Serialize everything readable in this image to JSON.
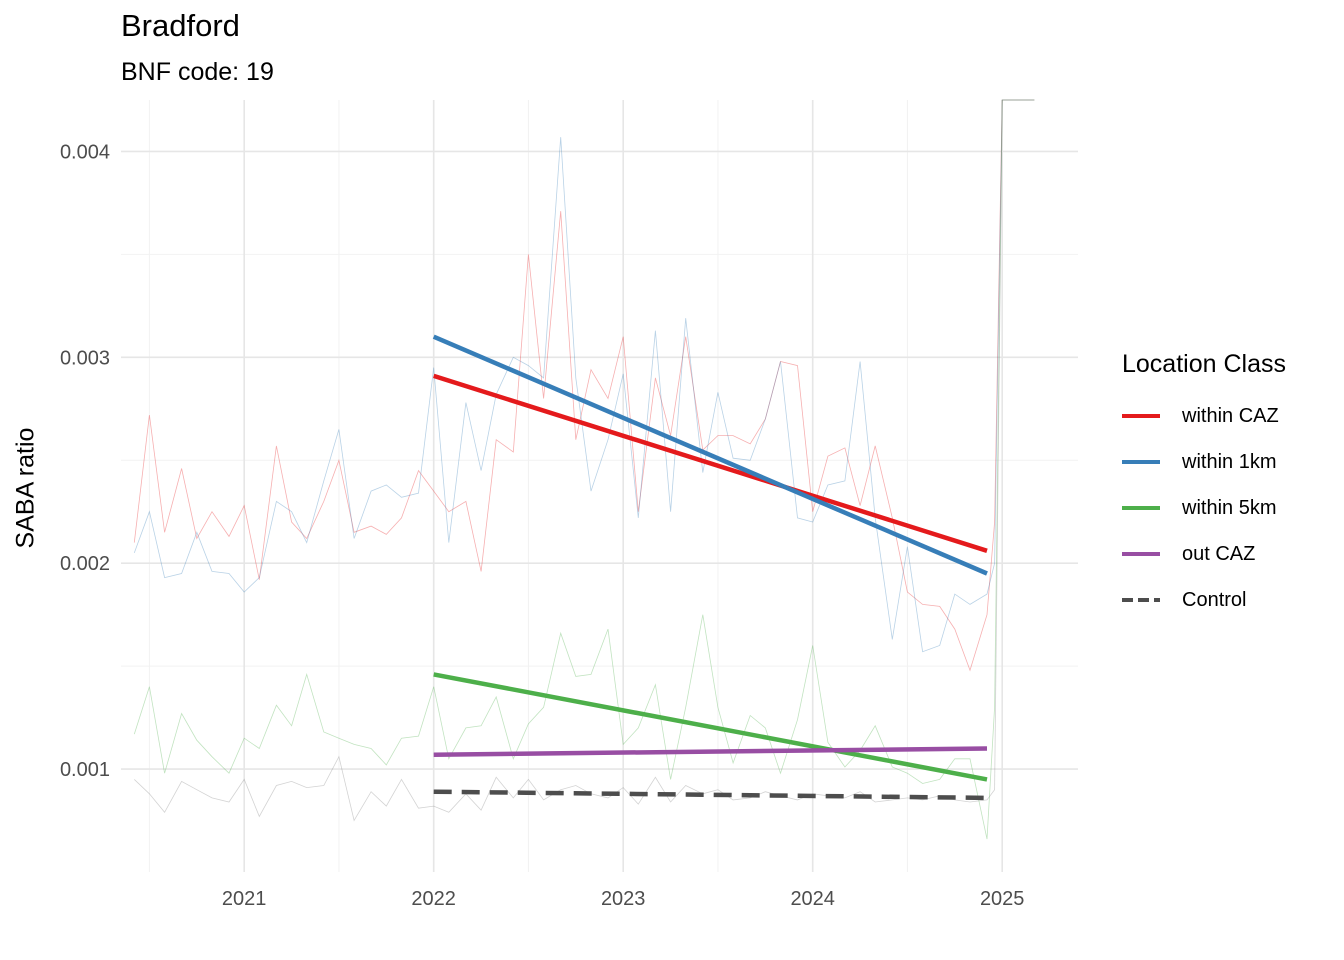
{
  "chart_data": {
    "type": "line",
    "title": "Bradford",
    "subtitle": "BNF code: 19",
    "xlabel": "",
    "ylabel": "SABA ratio",
    "xlim": [
      2020.35,
      2025.4
    ],
    "ylim": [
      0.0005,
      0.00425
    ],
    "x_ticks": [
      2021,
      2022,
      2023,
      2024,
      2025
    ],
    "x_tick_labels": [
      "2021",
      "2022",
      "2023",
      "2024",
      "2025"
    ],
    "y_ticks": [
      0.001,
      0.002,
      0.003,
      0.004
    ],
    "y_tick_labels": [
      "0.001",
      "0.002",
      "0.003",
      "0.004"
    ],
    "grid": true,
    "legend": {
      "title": "Location Class",
      "position": "right",
      "entries": [
        {
          "label": "within CAZ",
          "color": "#E41A1C",
          "dash": "solid"
        },
        {
          "label": "within 1km",
          "color": "#377EB8",
          "dash": "solid"
        },
        {
          "label": "within 5km",
          "color": "#4DAF4A",
          "dash": "solid"
        },
        {
          "label": "out CAZ",
          "color": "#984EA3",
          "dash": "solid"
        },
        {
          "label": "Control",
          "color": "#4D4D4D",
          "dash": "dashed"
        }
      ]
    },
    "trend_lines": [
      {
        "name": "within CAZ",
        "color": "#E41A1C",
        "dash": "solid",
        "x": [
          2022.0,
          2024.92
        ],
        "y": [
          0.00291,
          0.00206
        ]
      },
      {
        "name": "within 1km",
        "color": "#377EB8",
        "dash": "solid",
        "x": [
          2022.0,
          2024.92
        ],
        "y": [
          0.0031,
          0.00195
        ]
      },
      {
        "name": "within 5km",
        "color": "#4DAF4A",
        "dash": "solid",
        "x": [
          2022.0,
          2024.92
        ],
        "y": [
          0.00146,
          0.00095
        ]
      },
      {
        "name": "out CAZ",
        "color": "#984EA3",
        "dash": "solid",
        "x": [
          2022.0,
          2024.92
        ],
        "y": [
          0.00107,
          0.0011
        ]
      },
      {
        "name": "Control",
        "color": "#4D4D4D",
        "dash": "dashed",
        "x": [
          2022.0,
          2024.92
        ],
        "y": [
          0.00089,
          0.00086
        ]
      }
    ],
    "raw_series": [
      {
        "name": "within CAZ",
        "color": "#E41A1C",
        "x": [
          2020.42,
          2020.5,
          2020.58,
          2020.67,
          2020.75,
          2020.83,
          2020.92,
          2021.0,
          2021.08,
          2021.17,
          2021.25,
          2021.33,
          2021.42,
          2021.5,
          2021.58,
          2021.67,
          2021.75,
          2021.83,
          2021.92,
          2022.0,
          2022.08,
          2022.17,
          2022.25,
          2022.33,
          2022.42,
          2022.5,
          2022.58,
          2022.67,
          2022.75,
          2022.83,
          2022.92,
          2023.0,
          2023.08,
          2023.17,
          2023.25,
          2023.33,
          2023.42,
          2023.5,
          2023.58,
          2023.67,
          2023.75,
          2023.83,
          2023.92,
          2024.0,
          2024.08,
          2024.17,
          2024.25,
          2024.33,
          2024.42,
          2024.5,
          2024.58,
          2024.67,
          2024.75,
          2024.83,
          2024.92,
          2024.96,
          2025.0,
          2025.17
        ],
        "y": [
          0.0021,
          0.00272,
          0.00215,
          0.00246,
          0.00212,
          0.00225,
          0.00213,
          0.00228,
          0.00192,
          0.00257,
          0.0022,
          0.00212,
          0.0023,
          0.0025,
          0.00215,
          0.00218,
          0.00214,
          0.00222,
          0.00245,
          0.00235,
          0.00225,
          0.0023,
          0.00196,
          0.0026,
          0.00254,
          0.0035,
          0.0028,
          0.00371,
          0.0026,
          0.00294,
          0.0028,
          0.0031,
          0.00225,
          0.0029,
          0.00262,
          0.0031,
          0.00255,
          0.00262,
          0.00262,
          0.00258,
          0.0027,
          0.00298,
          0.00296,
          0.00225,
          0.00252,
          0.00256,
          0.00228,
          0.00257,
          0.00222,
          0.00186,
          0.0018,
          0.00179,
          0.00168,
          0.00148,
          0.00175,
          0.0022,
          0.00425,
          0.00425
        ]
      },
      {
        "name": "within 1km",
        "color": "#377EB8",
        "x": [
          2020.42,
          2020.5,
          2020.58,
          2020.67,
          2020.75,
          2020.83,
          2020.92,
          2021.0,
          2021.08,
          2021.17,
          2021.25,
          2021.33,
          2021.42,
          2021.5,
          2021.58,
          2021.67,
          2021.75,
          2021.83,
          2021.92,
          2022.0,
          2022.08,
          2022.17,
          2022.25,
          2022.33,
          2022.42,
          2022.5,
          2022.58,
          2022.67,
          2022.75,
          2022.83,
          2022.92,
          2023.0,
          2023.08,
          2023.17,
          2023.25,
          2023.33,
          2023.42,
          2023.5,
          2023.58,
          2023.67,
          2023.75,
          2023.83,
          2023.92,
          2024.0,
          2024.08,
          2024.17,
          2024.25,
          2024.33,
          2024.42,
          2024.5,
          2024.58,
          2024.67,
          2024.75,
          2024.83,
          2024.92,
          2024.96,
          2025.0,
          2025.17
        ],
        "y": [
          0.00205,
          0.00225,
          0.00193,
          0.00195,
          0.00215,
          0.00196,
          0.00195,
          0.00186,
          0.00193,
          0.0023,
          0.00225,
          0.0021,
          0.0024,
          0.00265,
          0.00212,
          0.00235,
          0.00238,
          0.00232,
          0.00234,
          0.00295,
          0.0021,
          0.00278,
          0.00245,
          0.00282,
          0.003,
          0.00296,
          0.0029,
          0.00407,
          0.0029,
          0.00235,
          0.0026,
          0.00292,
          0.00222,
          0.00313,
          0.00225,
          0.00319,
          0.00244,
          0.00283,
          0.00251,
          0.0025,
          0.0027,
          0.00298,
          0.00222,
          0.0022,
          0.00238,
          0.0024,
          0.00298,
          0.00222,
          0.00163,
          0.00208,
          0.00157,
          0.0016,
          0.00185,
          0.0018,
          0.00185,
          0.002,
          0.00425,
          0.00425
        ]
      },
      {
        "name": "within 5km",
        "color": "#4DAF4A",
        "x": [
          2020.42,
          2020.5,
          2020.58,
          2020.67,
          2020.75,
          2020.83,
          2020.92,
          2021.0,
          2021.08,
          2021.17,
          2021.25,
          2021.33,
          2021.42,
          2021.5,
          2021.58,
          2021.67,
          2021.75,
          2021.83,
          2021.92,
          2022.0,
          2022.08,
          2022.17,
          2022.25,
          2022.33,
          2022.42,
          2022.5,
          2022.58,
          2022.67,
          2022.75,
          2022.83,
          2022.92,
          2023.0,
          2023.08,
          2023.17,
          2023.25,
          2023.33,
          2023.42,
          2023.5,
          2023.58,
          2023.67,
          2023.75,
          2023.83,
          2023.92,
          2024.0,
          2024.08,
          2024.17,
          2024.25,
          2024.33,
          2024.42,
          2024.5,
          2024.58,
          2024.67,
          2024.75,
          2024.83,
          2024.92,
          2024.96,
          2025.0,
          2025.17
        ],
        "y": [
          0.00117,
          0.0014,
          0.00098,
          0.00127,
          0.00114,
          0.00106,
          0.00098,
          0.00115,
          0.0011,
          0.00131,
          0.00121,
          0.00146,
          0.00118,
          0.00115,
          0.00112,
          0.0011,
          0.00102,
          0.00115,
          0.00116,
          0.0014,
          0.00105,
          0.0012,
          0.00121,
          0.00135,
          0.00105,
          0.00122,
          0.0013,
          0.00166,
          0.00145,
          0.00146,
          0.00168,
          0.00112,
          0.0012,
          0.00141,
          0.00095,
          0.0013,
          0.00175,
          0.0013,
          0.00103,
          0.00126,
          0.0012,
          0.00098,
          0.00124,
          0.0016,
          0.00113,
          0.00101,
          0.00109,
          0.00121,
          0.00101,
          0.00098,
          0.00093,
          0.00095,
          0.00105,
          0.00105,
          0.00066,
          0.0013,
          0.00425,
          0.00425
        ]
      },
      {
        "name": "Control",
        "color": "#808080",
        "x": [
          2020.42,
          2020.5,
          2020.58,
          2020.67,
          2020.75,
          2020.83,
          2020.92,
          2021.0,
          2021.08,
          2021.17,
          2021.25,
          2021.33,
          2021.42,
          2021.5,
          2021.58,
          2021.67,
          2021.75,
          2021.83,
          2021.92,
          2022.0,
          2022.08,
          2022.17,
          2022.25,
          2022.33,
          2022.42,
          2022.5,
          2022.58,
          2022.67,
          2022.75,
          2022.83,
          2022.92,
          2023.0,
          2023.08,
          2023.17,
          2023.25,
          2023.33,
          2023.42,
          2023.5,
          2023.58,
          2023.67,
          2023.75,
          2023.83,
          2023.92,
          2024.0,
          2024.08,
          2024.17,
          2024.25,
          2024.33,
          2024.42,
          2024.5,
          2024.58,
          2024.67,
          2024.75,
          2024.83,
          2024.92,
          2024.96,
          2025.0,
          2025.17
        ],
        "y": [
          0.00095,
          0.00088,
          0.00079,
          0.00094,
          0.0009,
          0.00086,
          0.00084,
          0.00095,
          0.00077,
          0.00092,
          0.00094,
          0.00091,
          0.00092,
          0.00106,
          0.00075,
          0.00089,
          0.00082,
          0.00095,
          0.00081,
          0.00082,
          0.00079,
          0.00088,
          0.0008,
          0.00096,
          0.00086,
          0.00095,
          0.00085,
          0.0009,
          0.00092,
          0.00088,
          0.00086,
          0.00091,
          0.00083,
          0.00096,
          0.00084,
          0.00092,
          0.00088,
          0.0009,
          0.00085,
          0.00086,
          0.00089,
          0.00087,
          0.00085,
          0.00088,
          0.00087,
          0.00086,
          0.00089,
          0.00084,
          0.00085,
          0.00086,
          0.00085,
          0.00087,
          0.00085,
          0.00084,
          0.00085,
          0.0009,
          0.00425,
          0.00425
        ]
      }
    ]
  }
}
